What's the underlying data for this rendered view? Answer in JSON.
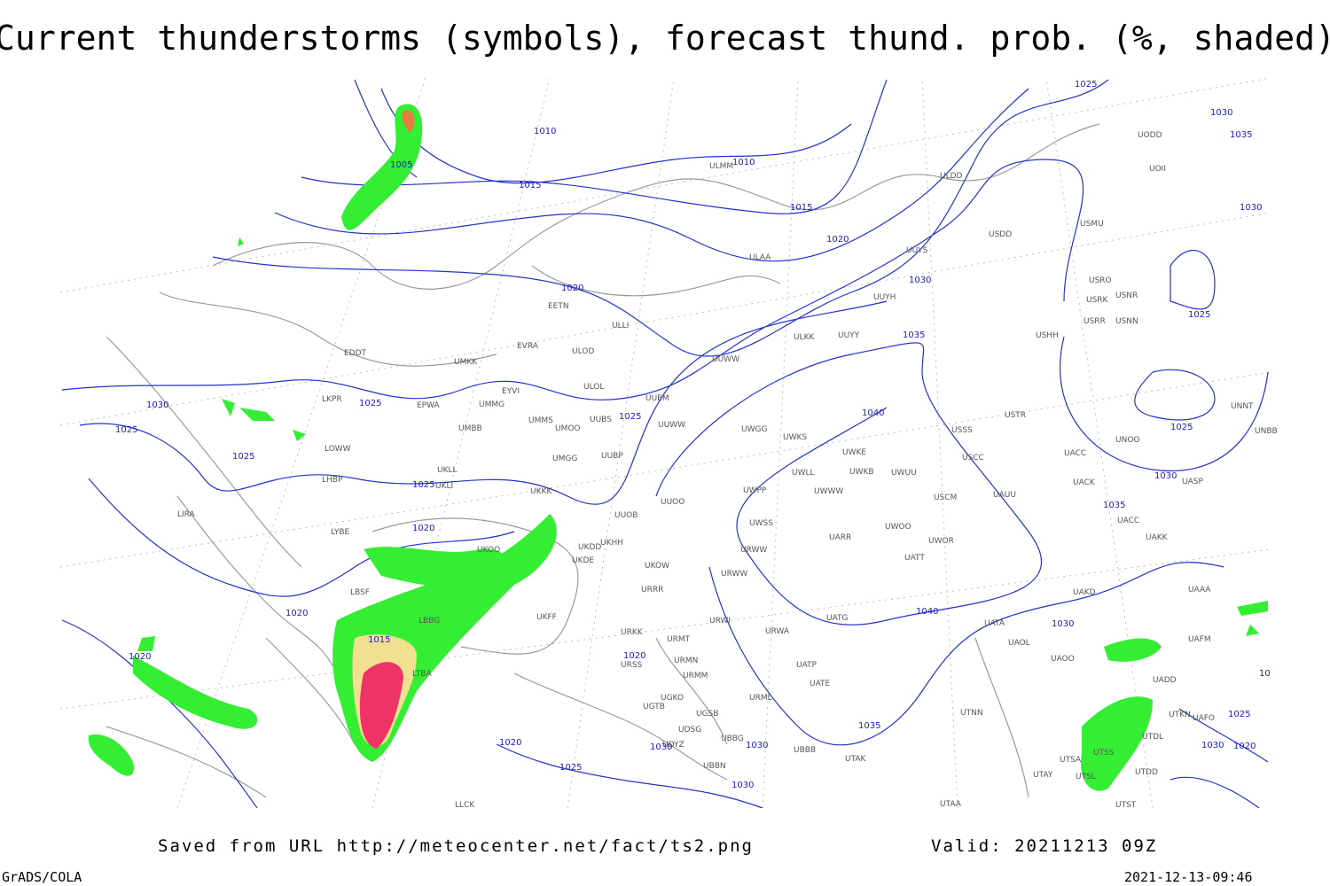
{
  "header": {
    "title": "Current thunderstorms (symbols), forecast thund. prob. (%, shaded)"
  },
  "map": {
    "stations": [
      "ULMM",
      "ULDD",
      "UODD",
      "UOII",
      "USDD",
      "USMU",
      "ULAA",
      "UUYS",
      "USRO",
      "USRK",
      "USNR",
      "UUYH",
      "EETN",
      "ULLI",
      "USRR",
      "USNN",
      "USHH",
      "ULKK",
      "UUYY",
      "EVRA",
      "ULOD",
      "EDDT",
      "UMKK",
      "UUWW",
      "ULOL",
      "EYVI",
      "UUEM",
      "LKPR",
      "EPWA",
      "UMMG",
      "USTR",
      "UNNT",
      "UMMS",
      "UMOO",
      "UUBS",
      "UUWW",
      "UWGG",
      "UWKS",
      "USSS",
      "UNOO",
      "UNBB",
      "LOWW",
      "UMBB",
      "UUBP",
      "UWKE",
      "USCC",
      "UACC",
      "UASP",
      "LHBP",
      "UKLL",
      "UKLI",
      "UMGG",
      "UWLL",
      "UWKB",
      "UWUU",
      "UACK",
      "UKKK",
      "UWPP",
      "UWWW",
      "USCM",
      "UAUU",
      "LIRA",
      "UUOO",
      "UUOB",
      "LYBE",
      "UWSS",
      "UWOO",
      "UACC",
      "UKOO",
      "UKDD",
      "UKHH",
      "UARR",
      "UWOR",
      "UAKK",
      "UKDE",
      "URWW",
      "UATT",
      "UKOW",
      "URWW",
      "LBSF",
      "URRR",
      "UAKD",
      "UAAA",
      "UKFF",
      "LBBG",
      "URWI",
      "UATG",
      "UATA",
      "URKK",
      "URWA",
      "UAOL",
      "URMT",
      "URSS",
      "URMN",
      "UAOO",
      "UAFM",
      "UATP",
      "LTBA",
      "UADD",
      "URMM",
      "UATE",
      "UGKO",
      "URML",
      "UGTB",
      "UGSB",
      "UTNN",
      "UTKN",
      "UAFO",
      "UDSG",
      "UBBG",
      "UTDL",
      "UDYZ",
      "UBBB",
      "UTSS",
      "UBBN",
      "UTAK",
      "UTSA",
      "UTDD",
      "UTAY",
      "UTSL",
      "LLCK",
      "UTAA",
      "UTST"
    ],
    "isobar_labels": [
      "1010",
      "1005",
      "1010",
      "1015",
      "1015",
      "1020",
      "1030",
      "1020",
      "1025",
      "1030",
      "1035",
      "1030",
      "1025",
      "1035",
      "1040",
      "1030",
      "1025",
      "1025",
      "1025",
      "1025",
      "1025",
      "1025",
      "1030",
      "1020",
      "1035",
      "1015",
      "1020",
      "1040",
      "1030",
      "1020",
      "1020",
      "1020",
      "1030",
      "1030",
      "1025",
      "1030",
      "1035",
      "1025",
      "1030",
      "1020",
      "10"
    ]
  },
  "footer": {
    "source": "Saved from URL http://meteocenter.net/fact/ts2.png",
    "valid": "Valid: 20211213 09Z",
    "software": "GrADS/COLA",
    "timestamp": "2021-12-13-09:46"
  }
}
